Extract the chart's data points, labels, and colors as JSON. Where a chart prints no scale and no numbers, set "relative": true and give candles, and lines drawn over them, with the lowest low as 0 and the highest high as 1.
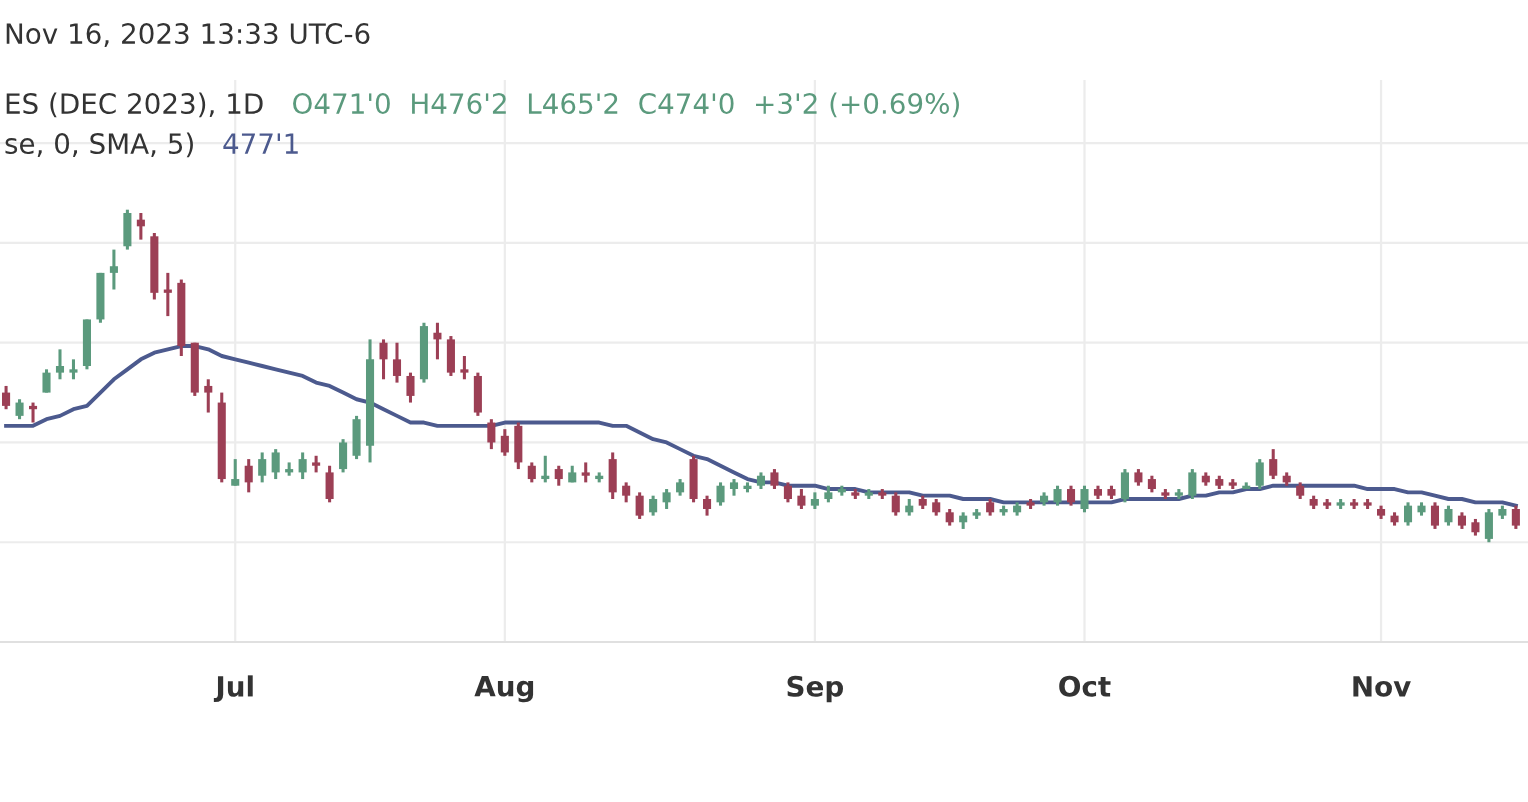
{
  "chart_data": {
    "type": "candlestick",
    "title": "Nov 16, 2023 13:33 UTC-6",
    "annotations": [
      "ES (DEC 2023), 1D",
      "O471'0  H476'2  L465'2  C474'0  +3'2 (+0.69%)",
      "se, 0, SMA, 5)",
      "477'1"
    ],
    "relative": true,
    "grid": true,
    "categories": [
      null,
      null,
      null,
      null,
      null,
      null,
      null,
      null,
      null,
      null,
      null,
      null,
      null,
      null,
      null,
      null,
      null,
      "Jul",
      null,
      null,
      null,
      null,
      null,
      null,
      null,
      null,
      null,
      null,
      null,
      null,
      null,
      null,
      null,
      null,
      null,
      null,
      null,
      "Aug",
      null,
      null,
      null,
      null,
      null,
      null,
      null,
      null,
      null,
      null,
      null,
      null,
      null,
      null,
      null,
      null,
      null,
      null,
      null,
      null,
      null,
      null,
      "Sep",
      null,
      null,
      null,
      null,
      null,
      null,
      null,
      null,
      null,
      null,
      null,
      null,
      null,
      null,
      null,
      null,
      null,
      null,
      null,
      "Oct",
      null,
      null,
      null,
      null,
      null,
      null,
      null,
      null,
      null,
      null,
      null,
      null,
      null,
      null,
      null,
      null,
      null,
      null,
      null,
      null,
      null,
      "Nov",
      null,
      null,
      null,
      null,
      null,
      null,
      null,
      null,
      null,
      null
    ],
    "ohlc": [
      [
        0.45,
        0.47,
        0.4,
        0.41
      ],
      [
        0.38,
        0.43,
        0.37,
        0.42
      ],
      [
        0.41,
        0.42,
        0.36,
        0.4
      ],
      [
        0.45,
        0.52,
        0.45,
        0.51
      ],
      [
        0.51,
        0.58,
        0.49,
        0.53
      ],
      [
        0.51,
        0.55,
        0.49,
        0.52
      ],
      [
        0.53,
        0.67,
        0.52,
        0.67
      ],
      [
        0.67,
        0.81,
        0.66,
        0.81
      ],
      [
        0.81,
        0.88,
        0.76,
        0.83
      ],
      [
        0.89,
        1.0,
        0.88,
        0.99
      ],
      [
        0.97,
        0.99,
        0.91,
        0.95
      ],
      [
        0.92,
        0.93,
        0.73,
        0.75
      ],
      [
        0.76,
        0.81,
        0.68,
        0.75
      ],
      [
        0.78,
        0.79,
        0.56,
        0.59
      ],
      [
        0.6,
        0.6,
        0.44,
        0.45
      ],
      [
        0.47,
        0.49,
        0.39,
        0.45
      ],
      [
        0.42,
        0.45,
        0.18,
        0.19
      ],
      [
        0.17,
        0.25,
        0.17,
        0.19
      ],
      [
        0.23,
        0.25,
        0.15,
        0.18
      ],
      [
        0.2,
        0.27,
        0.18,
        0.25
      ],
      [
        0.21,
        0.28,
        0.19,
        0.27
      ],
      [
        0.21,
        0.24,
        0.2,
        0.22
      ],
      [
        0.21,
        0.27,
        0.19,
        0.25
      ],
      [
        0.24,
        0.26,
        0.21,
        0.23
      ],
      [
        0.21,
        0.23,
        0.12,
        0.13
      ],
      [
        0.22,
        0.31,
        0.21,
        0.3
      ],
      [
        0.26,
        0.38,
        0.25,
        0.37
      ],
      [
        0.29,
        0.61,
        0.24,
        0.55
      ],
      [
        0.6,
        0.61,
        0.49,
        0.55
      ],
      [
        0.55,
        0.6,
        0.48,
        0.5
      ],
      [
        0.5,
        0.51,
        0.42,
        0.44
      ],
      [
        0.49,
        0.66,
        0.48,
        0.65
      ],
      [
        0.63,
        0.66,
        0.55,
        0.61
      ],
      [
        0.61,
        0.62,
        0.5,
        0.51
      ],
      [
        0.52,
        0.56,
        0.49,
        0.51
      ],
      [
        0.5,
        0.51,
        0.38,
        0.39
      ],
      [
        0.36,
        0.37,
        0.28,
        0.3
      ],
      [
        0.32,
        0.34,
        0.26,
        0.27
      ],
      [
        0.35,
        0.36,
        0.22,
        0.24
      ],
      [
        0.23,
        0.24,
        0.18,
        0.19
      ],
      [
        0.19,
        0.26,
        0.18,
        0.2
      ],
      [
        0.22,
        0.23,
        0.17,
        0.19
      ],
      [
        0.18,
        0.23,
        0.18,
        0.21
      ],
      [
        0.21,
        0.24,
        0.18,
        0.2
      ],
      [
        0.19,
        0.21,
        0.18,
        0.2
      ],
      [
        0.25,
        0.27,
        0.13,
        0.15
      ],
      [
        0.17,
        0.18,
        0.12,
        0.14
      ],
      [
        0.14,
        0.15,
        0.07,
        0.08
      ],
      [
        0.09,
        0.14,
        0.08,
        0.13
      ],
      [
        0.12,
        0.16,
        0.1,
        0.15
      ],
      [
        0.15,
        0.19,
        0.14,
        0.18
      ],
      [
        0.25,
        0.26,
        0.12,
        0.13
      ],
      [
        0.13,
        0.14,
        0.08,
        0.1
      ],
      [
        0.12,
        0.18,
        0.11,
        0.17
      ],
      [
        0.16,
        0.19,
        0.14,
        0.18
      ],
      [
        0.16,
        0.18,
        0.15,
        0.17
      ],
      [
        0.17,
        0.21,
        0.16,
        0.2
      ],
      [
        0.21,
        0.22,
        0.16,
        0.17
      ],
      [
        0.17,
        0.18,
        0.12,
        0.13
      ],
      [
        0.14,
        0.16,
        0.1,
        0.11
      ],
      [
        0.11,
        0.15,
        0.1,
        0.13
      ],
      [
        0.13,
        0.17,
        0.12,
        0.15
      ],
      [
        0.15,
        0.17,
        0.14,
        0.16
      ],
      [
        0.15,
        0.16,
        0.13,
        0.14
      ],
      [
        0.14,
        0.16,
        0.13,
        0.15
      ],
      [
        0.15,
        0.16,
        0.13,
        0.14
      ],
      [
        0.14,
        0.15,
        0.08,
        0.09
      ],
      [
        0.09,
        0.13,
        0.08,
        0.11
      ],
      [
        0.13,
        0.14,
        0.1,
        0.11
      ],
      [
        0.12,
        0.13,
        0.08,
        0.09
      ],
      [
        0.09,
        0.1,
        0.05,
        0.06
      ],
      [
        0.06,
        0.09,
        0.04,
        0.08
      ],
      [
        0.08,
        0.1,
        0.07,
        0.09
      ],
      [
        0.12,
        0.13,
        0.08,
        0.09
      ],
      [
        0.09,
        0.11,
        0.08,
        0.1
      ],
      [
        0.09,
        0.12,
        0.08,
        0.11
      ],
      [
        0.12,
        0.13,
        0.1,
        0.11
      ],
      [
        0.12,
        0.15,
        0.11,
        0.14
      ],
      [
        0.12,
        0.17,
        0.11,
        0.16
      ],
      [
        0.16,
        0.17,
        0.11,
        0.12
      ],
      [
        0.1,
        0.17,
        0.09,
        0.16
      ],
      [
        0.16,
        0.17,
        0.13,
        0.14
      ],
      [
        0.16,
        0.17,
        0.13,
        0.14
      ],
      [
        0.13,
        0.22,
        0.12,
        0.21
      ],
      [
        0.21,
        0.22,
        0.17,
        0.18
      ],
      [
        0.19,
        0.2,
        0.15,
        0.16
      ],
      [
        0.15,
        0.16,
        0.13,
        0.14
      ],
      [
        0.14,
        0.16,
        0.13,
        0.15
      ],
      [
        0.14,
        0.22,
        0.13,
        0.21
      ],
      [
        0.2,
        0.21,
        0.17,
        0.18
      ],
      [
        0.19,
        0.2,
        0.16,
        0.17
      ],
      [
        0.18,
        0.19,
        0.16,
        0.17
      ],
      [
        0.16,
        0.18,
        0.16,
        0.17
      ],
      [
        0.17,
        0.25,
        0.16,
        0.24
      ],
      [
        0.25,
        0.28,
        0.19,
        0.2
      ],
      [
        0.2,
        0.21,
        0.17,
        0.18
      ],
      [
        0.17,
        0.18,
        0.13,
        0.14
      ],
      [
        0.13,
        0.14,
        0.1,
        0.11
      ],
      [
        0.12,
        0.13,
        0.1,
        0.11
      ],
      [
        0.11,
        0.13,
        0.1,
        0.12
      ],
      [
        0.12,
        0.13,
        0.1,
        0.11
      ],
      [
        0.12,
        0.13,
        0.1,
        0.11
      ],
      [
        0.1,
        0.11,
        0.07,
        0.08
      ],
      [
        0.08,
        0.09,
        0.05,
        0.06
      ],
      [
        0.06,
        0.12,
        0.05,
        0.11
      ],
      [
        0.09,
        0.12,
        0.08,
        0.11
      ],
      [
        0.11,
        0.12,
        0.04,
        0.05
      ],
      [
        0.06,
        0.11,
        0.05,
        0.1
      ],
      [
        0.08,
        0.09,
        0.04,
        0.05
      ],
      [
        0.06,
        0.07,
        0.02,
        0.03
      ],
      [
        0.01,
        0.1,
        0,
        0.09
      ],
      [
        0.08,
        0.11,
        0.07,
        0.1
      ],
      [
        0.1,
        0.11,
        0.04,
        0.05
      ]
    ],
    "colors": [
      "#9c3f55",
      "#5b9a7d",
      "#9c3f55",
      "#5b9a7d",
      "#5b9a7d",
      "#5b9a7d",
      "#5b9a7d",
      "#5b9a7d",
      "#5b9a7d",
      "#5b9a7d",
      "#9c3f55",
      "#9c3f55",
      "#9c3f55",
      "#9c3f55",
      "#9c3f55",
      "#9c3f55",
      "#9c3f55",
      "#5b9a7d",
      "#9c3f55",
      "#5b9a7d",
      "#5b9a7d",
      "#5b9a7d",
      "#5b9a7d",
      "#9c3f55",
      "#9c3f55",
      "#5b9a7d",
      "#5b9a7d",
      "#5b9a7d",
      "#9c3f55",
      "#9c3f55",
      "#9c3f55",
      "#5b9a7d",
      "#9c3f55",
      "#9c3f55",
      "#9c3f55",
      "#9c3f55",
      "#9c3f55",
      "#9c3f55",
      "#9c3f55",
      "#9c3f55",
      "#5b9a7d",
      "#9c3f55",
      "#5b9a7d",
      "#9c3f55",
      "#5b9a7d",
      "#9c3f55",
      "#9c3f55",
      "#9c3f55",
      "#5b9a7d",
      "#5b9a7d",
      "#5b9a7d",
      "#9c3f55",
      "#9c3f55",
      "#5b9a7d",
      "#5b9a7d",
      "#5b9a7d",
      "#5b9a7d",
      "#9c3f55",
      "#9c3f55",
      "#9c3f55",
      "#5b9a7d",
      "#5b9a7d",
      "#5b9a7d",
      "#9c3f55",
      "#5b9a7d",
      "#9c3f55",
      "#9c3f55",
      "#5b9a7d",
      "#9c3f55",
      "#9c3f55",
      "#9c3f55",
      "#5b9a7d",
      "#5b9a7d",
      "#9c3f55",
      "#5b9a7d",
      "#5b9a7d",
      "#9c3f55",
      "#5b9a7d",
      "#5b9a7d",
      "#9c3f55",
      "#5b9a7d",
      "#9c3f55",
      "#9c3f55",
      "#5b9a7d",
      "#9c3f55",
      "#9c3f55",
      "#9c3f55",
      "#5b9a7d",
      "#5b9a7d",
      "#9c3f55",
      "#9c3f55",
      "#9c3f55",
      "#5b9a7d",
      "#5b9a7d",
      "#9c3f55",
      "#9c3f55",
      "#9c3f55",
      "#9c3f55",
      "#9c3f55",
      "#5b9a7d",
      "#9c3f55",
      "#9c3f55",
      "#9c3f55",
      "#9c3f55",
      "#5b9a7d",
      "#5b9a7d",
      "#9c3f55",
      "#5b9a7d",
      "#9c3f55",
      "#9c3f55",
      "#5b9a7d",
      "#5b9a7d",
      "#9c3f55"
    ],
    "series": [
      {
        "type": "line",
        "color": "#4c5a8e",
        "values": [
          0.35,
          0.35,
          0.35,
          0.37,
          0.38,
          0.4,
          0.41,
          0.45,
          0.49,
          0.52,
          0.55,
          0.57,
          0.58,
          0.59,
          0.59,
          0.58,
          0.56,
          0.55,
          0.54,
          0.53,
          0.52,
          0.51,
          0.5,
          0.48,
          0.47,
          0.45,
          0.43,
          0.42,
          0.4,
          0.38,
          0.36,
          0.36,
          0.35,
          0.35,
          0.35,
          0.35,
          0.35,
          0.36,
          0.36,
          0.36,
          0.36,
          0.36,
          0.36,
          0.36,
          0.36,
          0.35,
          0.35,
          0.33,
          0.31,
          0.3,
          0.28,
          0.26,
          0.25,
          0.23,
          0.21,
          0.19,
          0.18,
          0.18,
          0.17,
          0.17,
          0.17,
          0.16,
          0.16,
          0.16,
          0.15,
          0.15,
          0.15,
          0.15,
          0.14,
          0.14,
          0.14,
          0.13,
          0.13,
          0.13,
          0.12,
          0.12,
          0.12,
          0.12,
          0.12,
          0.12,
          0.12,
          0.12,
          0.12,
          0.13,
          0.13,
          0.13,
          0.13,
          0.13,
          0.14,
          0.14,
          0.15,
          0.15,
          0.16,
          0.16,
          0.17,
          0.17,
          0.17,
          0.17,
          0.17,
          0.17,
          0.17,
          0.16,
          0.16,
          0.16,
          0.15,
          0.15,
          0.14,
          0.13,
          0.13,
          0.12,
          0.12,
          0.12,
          0.11
        ]
      }
    ]
  }
}
